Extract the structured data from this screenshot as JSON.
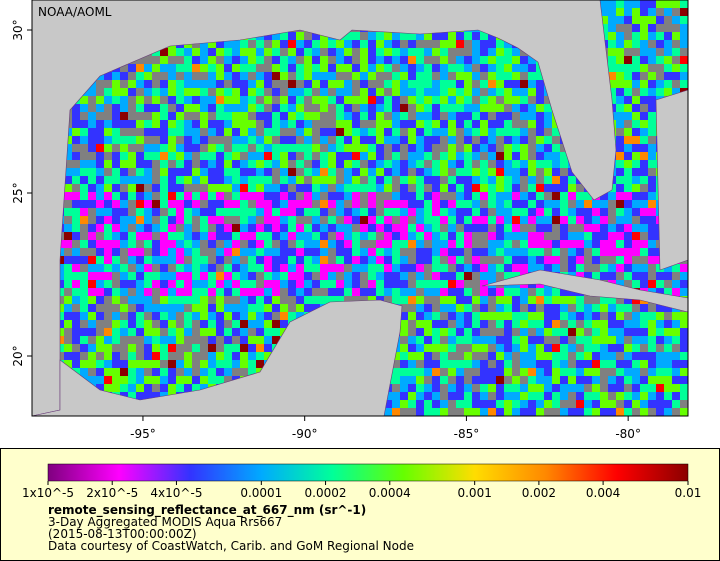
{
  "map": {
    "watermark": "NOAA/AOML",
    "xlim": [
      -98.43,
      -78.15
    ],
    "ylim": [
      18.16,
      30.92
    ],
    "xticks": [
      {
        "value": -95,
        "label": "-95°"
      },
      {
        "value": -90,
        "label": "-90°"
      },
      {
        "value": -85,
        "label": "-85°"
      },
      {
        "value": -80,
        "label": "-80°"
      }
    ],
    "yticks": [
      {
        "value": 20,
        "label": "20°"
      },
      {
        "value": 25,
        "label": "25°"
      },
      {
        "value": 30,
        "label": "30°"
      }
    ],
    "land_color": "#c8c8c8",
    "nodata_color": "#808080"
  },
  "colorbar": {
    "lim": [
      1e-05,
      0.01
    ],
    "log": true,
    "colors": [
      "#7f007f",
      "#ff00ff",
      "#3333ff",
      "#00aaff",
      "#00ff99",
      "#66ff00",
      "#ffdd00",
      "#ff8800",
      "#ff0000",
      "#8b0000"
    ],
    "ticks": [
      {
        "value": 1e-05,
        "label": "1x10^-5"
      },
      {
        "value": 2e-05,
        "label": "2x10^-5"
      },
      {
        "value": 4e-05,
        "label": "4x10^-5"
      },
      0.0001,
      0.0002,
      0.0004,
      0.001,
      0.002,
      0.004,
      0.01
    ],
    "variable": "remote_sensing_reflectance_at_667_nm (sr^-1)",
    "lines": [
      "3-Day Aggregated MODIS Aqua Rrs667",
      "(2015-08-13T00:00:00Z)",
      "Data courtesy of CoastWatch, Carib. and GoM Regional Node"
    ]
  }
}
